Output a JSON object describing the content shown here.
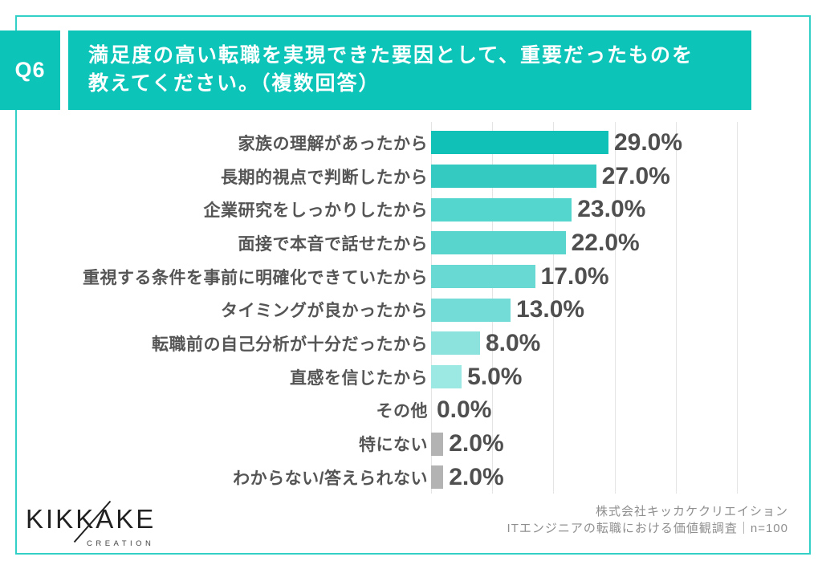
{
  "header": {
    "badge": "Q6",
    "title_line1": "満足度の高い転職を実現できた要因として、重要だったものを",
    "title_line2": "教えてください。（複数回答）"
  },
  "chart_data": {
    "type": "bar",
    "orientation": "horizontal",
    "title": "満足度の高い転職を実現できた要因として、重要だったものを教えてください。（複数回答）",
    "categories": [
      "家族の理解があったから",
      "長期的視点で判断したから",
      "企業研究をしっかりしたから",
      "面接で本音で話せたから",
      "重視する条件を事前に明確化できていたから",
      "タイミングが良かったから",
      "転職前の自己分析が十分だったから",
      "直感を信じたから",
      "その他",
      "特にない",
      "わからない/答えられない"
    ],
    "values": [
      29.0,
      27.0,
      23.0,
      22.0,
      17.0,
      13.0,
      8.0,
      5.0,
      0.0,
      2.0,
      2.0
    ],
    "value_labels": [
      "29.0%",
      "27.0%",
      "23.0%",
      "22.0%",
      "17.0%",
      "13.0%",
      "8.0%",
      "5.0%",
      "0.0%",
      "2.0%",
      "2.0%"
    ],
    "bar_colors": [
      "#0fc1b6",
      "#35cac1",
      "#54d5cd",
      "#58d6ce",
      "#68d9d3",
      "#74dcd6",
      "#8ce2dc",
      "#9ce8e2",
      "#9ce8e2",
      "#b3b3b3",
      "#b3b3b3"
    ],
    "xlim": [
      0,
      50
    ],
    "gridline_step": 10,
    "grid": true,
    "legend": false,
    "unit": "%"
  },
  "footer": {
    "logo_text": "KIKKAKE",
    "logo_subtext": "CREATION",
    "source_line1": "株式会社キッカケクリエイション",
    "source_line2": "ITエンジニアの転職における価値観調査｜n=100"
  },
  "colors": {
    "accent": "#0dc4b8",
    "frame_border": "#32d0c7",
    "label_text": "#555555",
    "value_text": "#4f4f4f",
    "gridline": "#e4e4e4",
    "neutral_bar": "#b3b3b3"
  }
}
